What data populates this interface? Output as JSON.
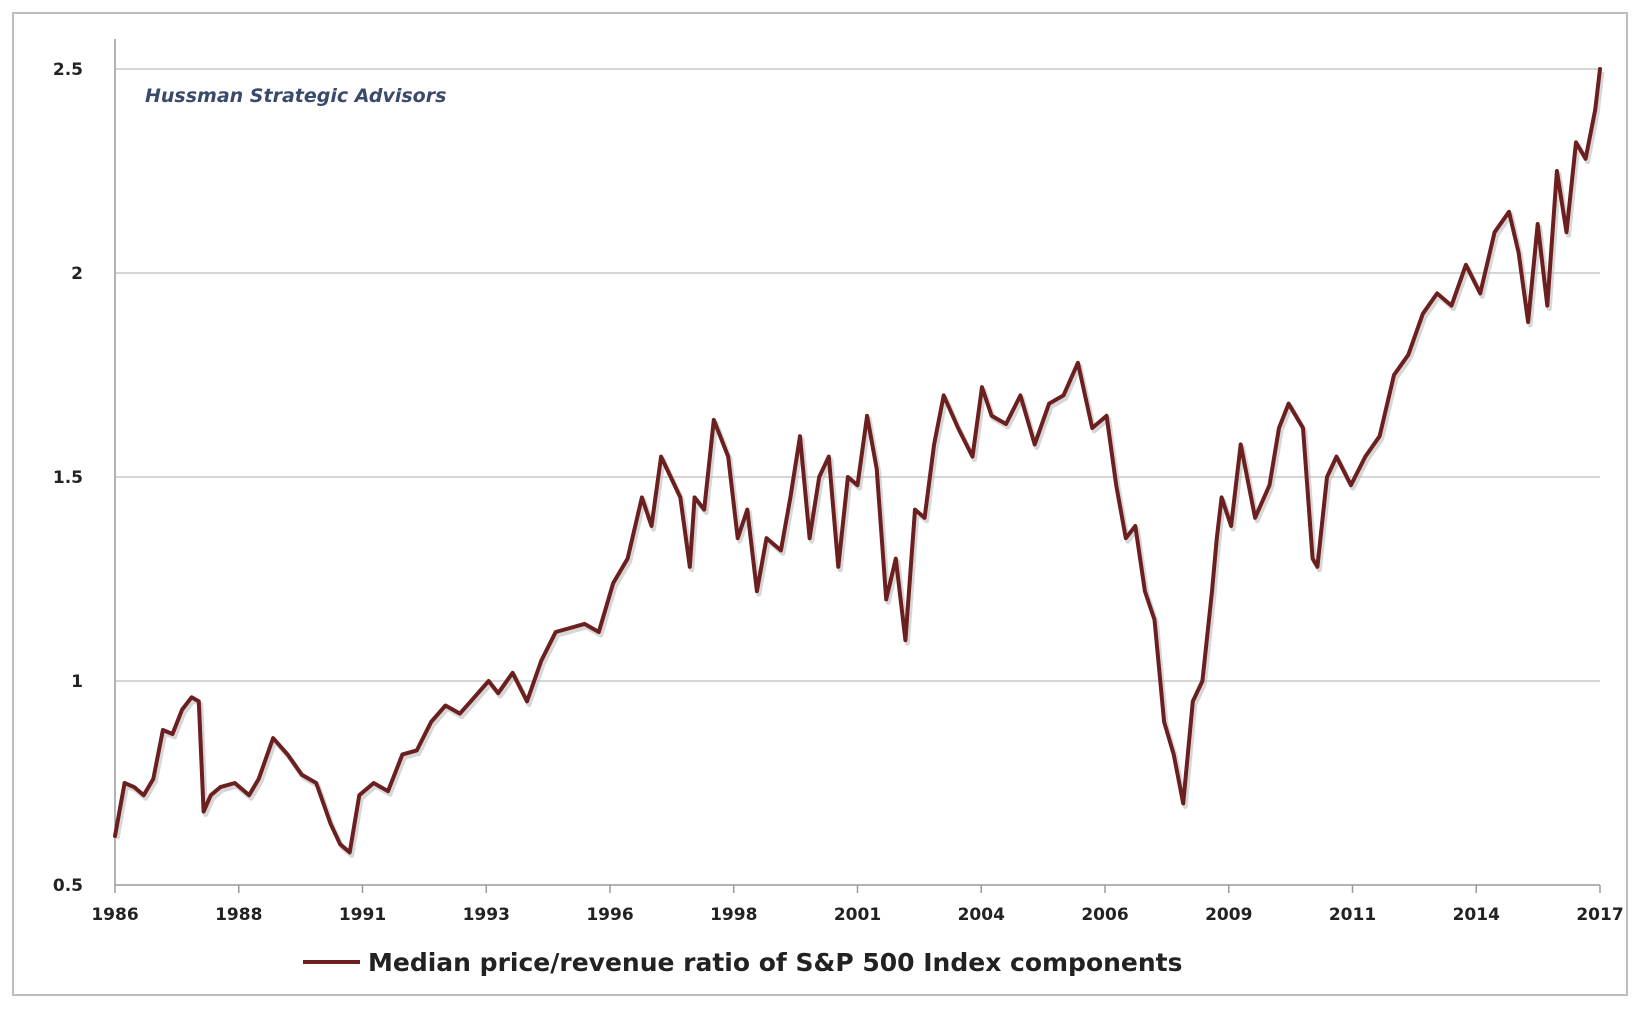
{
  "chart_data": {
    "type": "line",
    "title": "",
    "xlabel": "",
    "ylabel": "",
    "watermark": "Hussman Strategic Advisors",
    "ylim": [
      0.5,
      2.5
    ],
    "xlim": [
      1986.0,
      2017.0
    ],
    "yticks": [
      "0.5",
      "1",
      "1.5",
      "2",
      "2.5"
    ],
    "xticks": [
      "1986",
      "1988",
      "1991",
      "1993",
      "1996",
      "1998",
      "2001",
      "2004",
      "2006",
      "2009",
      "2011",
      "2014",
      "2017"
    ],
    "grid": true,
    "legend_placement": "bottom",
    "series": [
      {
        "name": "Median price/revenue ratio of S&P 500 Index components",
        "color": "#6b1f1f",
        "x": [
          1986.0,
          1986.2,
          1986.4,
          1986.6,
          1986.8,
          1987.0,
          1987.2,
          1987.4,
          1987.6,
          1987.75,
          1987.85,
          1988.0,
          1988.2,
          1988.5,
          1988.8,
          1989.0,
          1989.3,
          1989.6,
          1989.9,
          1990.2,
          1990.5,
          1990.7,
          1990.9,
          1991.1,
          1991.4,
          1991.7,
          1992.0,
          1992.3,
          1992.6,
          1992.9,
          1993.2,
          1993.5,
          1993.8,
          1994.0,
          1994.3,
          1994.6,
          1994.9,
          1995.2,
          1995.5,
          1995.8,
          1996.1,
          1996.4,
          1996.7,
          1997.0,
          1997.2,
          1997.4,
          1997.6,
          1997.8,
          1998.0,
          1998.1,
          1998.3,
          1998.5,
          1998.8,
          1999.0,
          1999.2,
          1999.4,
          1999.6,
          1999.9,
          2000.1,
          2000.3,
          2000.5,
          2000.7,
          2000.9,
          2001.1,
          2001.3,
          2001.5,
          2001.7,
          2001.9,
          2002.1,
          2002.3,
          2002.5,
          2002.7,
          2002.9,
          2003.1,
          2003.3,
          2003.6,
          2003.9,
          2004.1,
          2004.3,
          2004.6,
          2004.9,
          2005.2,
          2005.5,
          2005.8,
          2006.1,
          2006.4,
          2006.7,
          2006.9,
          2007.1,
          2007.3,
          2007.5,
          2007.7,
          2007.9,
          2008.1,
          2008.3,
          2008.5,
          2008.7,
          2008.9,
          2009.0,
          2009.1,
          2009.3,
          2009.5,
          2009.8,
          2010.1,
          2010.3,
          2010.5,
          2010.8,
          2011.0,
          2011.1,
          2011.3,
          2011.5,
          2011.8,
          2012.1,
          2012.4,
          2012.7,
          2013.0,
          2013.3,
          2013.6,
          2013.9,
          2014.2,
          2014.5,
          2014.8,
          2015.1,
          2015.3,
          2015.5,
          2015.7,
          2015.9,
          2016.1,
          2016.3,
          2016.5,
          2016.7,
          2016.9,
          2017.0
        ],
        "y": [
          0.62,
          0.75,
          0.74,
          0.72,
          0.76,
          0.88,
          0.87,
          0.93,
          0.96,
          0.95,
          0.68,
          0.72,
          0.74,
          0.75,
          0.72,
          0.76,
          0.86,
          0.82,
          0.77,
          0.75,
          0.65,
          0.6,
          0.58,
          0.72,
          0.75,
          0.73,
          0.82,
          0.83,
          0.9,
          0.94,
          0.92,
          0.96,
          1.0,
          0.97,
          1.02,
          0.95,
          1.05,
          1.12,
          1.13,
          1.14,
          1.12,
          1.24,
          1.3,
          1.45,
          1.38,
          1.55,
          1.5,
          1.45,
          1.28,
          1.45,
          1.42,
          1.64,
          1.55,
          1.35,
          1.42,
          1.22,
          1.35,
          1.32,
          1.45,
          1.6,
          1.35,
          1.5,
          1.55,
          1.28,
          1.5,
          1.48,
          1.65,
          1.52,
          1.2,
          1.3,
          1.1,
          1.42,
          1.4,
          1.58,
          1.7,
          1.62,
          1.55,
          1.72,
          1.65,
          1.63,
          1.7,
          1.58,
          1.68,
          1.7,
          1.78,
          1.62,
          1.65,
          1.48,
          1.35,
          1.38,
          1.22,
          1.15,
          0.9,
          0.82,
          0.7,
          0.95,
          1.0,
          1.22,
          1.35,
          1.45,
          1.38,
          1.58,
          1.4,
          1.48,
          1.62,
          1.68,
          1.62,
          1.3,
          1.28,
          1.5,
          1.55,
          1.48,
          1.55,
          1.6,
          1.75,
          1.8,
          1.9,
          1.95,
          1.92,
          2.02,
          1.95,
          2.1,
          2.15,
          2.05,
          1.88,
          2.12,
          1.92,
          2.25,
          2.1,
          2.32,
          2.28,
          2.4,
          2.5
        ]
      }
    ]
  }
}
